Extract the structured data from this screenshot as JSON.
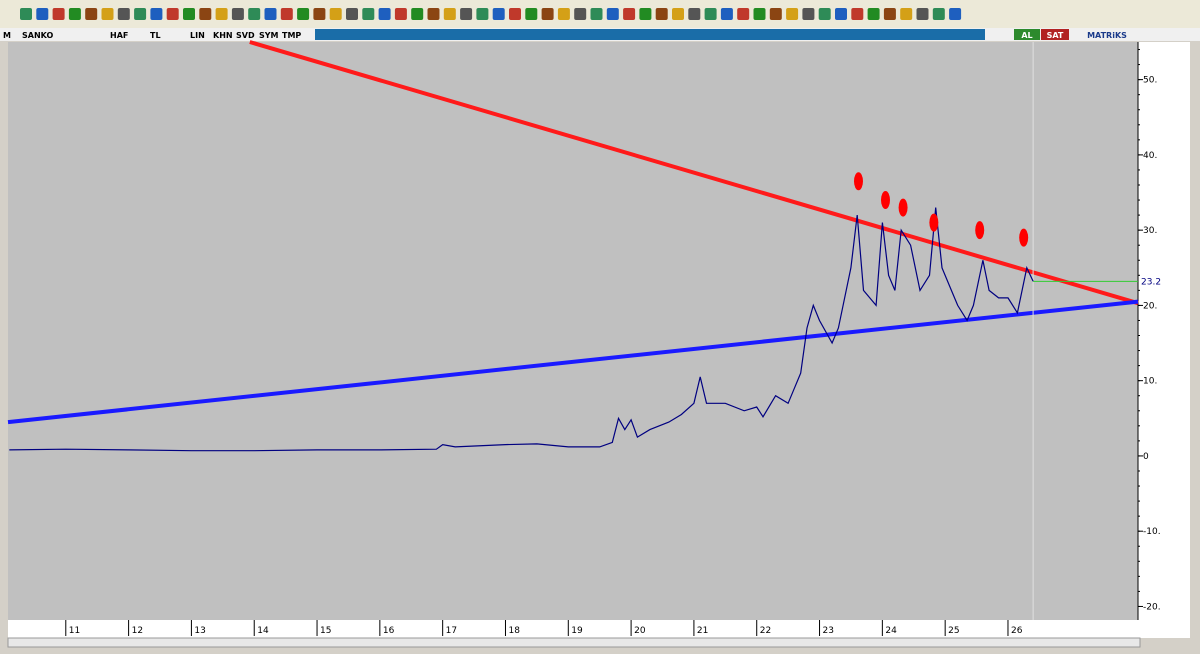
{
  "toolbar": {
    "symbol_prefix": "M",
    "symbol": "SANKO",
    "buttons": [
      "HAF",
      "TL",
      "LIN",
      "KHN",
      "SVD",
      "SYM",
      "TMP"
    ],
    "buy": "AL",
    "sell": "SAT",
    "brand": "MATRiKS"
  },
  "chart_data": {
    "type": "line",
    "x": [
      10.1,
      11,
      12,
      13,
      14,
      15,
      16,
      16.9,
      17,
      17.2,
      18,
      18.5,
      19,
      19.5,
      19.7,
      19.8,
      19.9,
      20,
      20.1,
      20.3,
      20.6,
      20.8,
      21,
      21.1,
      21.2,
      21.5,
      21.8,
      22,
      22.1,
      22.3,
      22.5,
      22.6,
      22.7,
      22.8,
      22.9,
      23,
      23.2,
      23.3,
      23.5,
      23.6,
      23.7,
      23.8,
      23.9,
      24,
      24.1,
      24.2,
      24.3,
      24.45,
      24.6,
      24.75,
      24.85,
      24.95,
      25.1,
      25.2,
      25.35,
      25.45,
      25.6,
      25.7,
      25.85,
      26,
      26.15,
      26.3,
      26.4
    ],
    "series": [
      {
        "color": "#000080",
        "values": [
          0.8,
          0.9,
          0.8,
          0.7,
          0.7,
          0.8,
          0.8,
          0.9,
          1.5,
          1.2,
          1.5,
          1.6,
          1.2,
          1.2,
          1.8,
          5,
          3.5,
          4.8,
          2.5,
          3.5,
          4.5,
          5.5,
          7,
          10.5,
          7,
          7,
          6,
          6.5,
          5.2,
          8,
          7,
          9,
          11,
          17,
          20,
          18,
          15,
          17,
          25,
          32,
          22,
          21,
          20,
          31,
          24,
          22,
          30,
          28,
          22,
          24,
          33,
          25,
          22,
          20,
          18,
          20,
          26,
          22,
          21,
          21,
          19,
          25,
          23.2
        ]
      }
    ],
    "trendlines": [
      {
        "color": "#ff1a1a",
        "x": [
          13.93,
          28.07
        ],
        "values": [
          55,
          20.3
        ]
      },
      {
        "color": "#1a1aff",
        "x": [
          10.08,
          28.07
        ],
        "values": [
          4.5,
          20.5
        ]
      }
    ],
    "markers": {
      "color": "#ff0000",
      "x": [
        23.62,
        24.05,
        24.33,
        24.82,
        25.55,
        26.25
      ],
      "values": [
        36.5,
        34,
        33,
        31,
        30,
        29
      ]
    },
    "last_value": 23.2,
    "last_color": "#33cc33",
    "xlim": [
      10.08,
      28.07
    ],
    "xticks": [
      11,
      12,
      13,
      14,
      15,
      16,
      17,
      18,
      19,
      20,
      21,
      22,
      23,
      24,
      25,
      26
    ],
    "ylim": [
      -21.8,
      55
    ],
    "yticks": [
      {
        "value": 50,
        "label": "50."
      },
      {
        "value": 40,
        "label": "40."
      },
      {
        "value": 30,
        "label": "30."
      },
      {
        "value": 20,
        "label": "20."
      },
      {
        "value": 10,
        "label": "10."
      },
      0,
      {
        "value": -10,
        "label": "-10."
      },
      {
        "value": -20,
        "label": "-20."
      }
    ]
  }
}
